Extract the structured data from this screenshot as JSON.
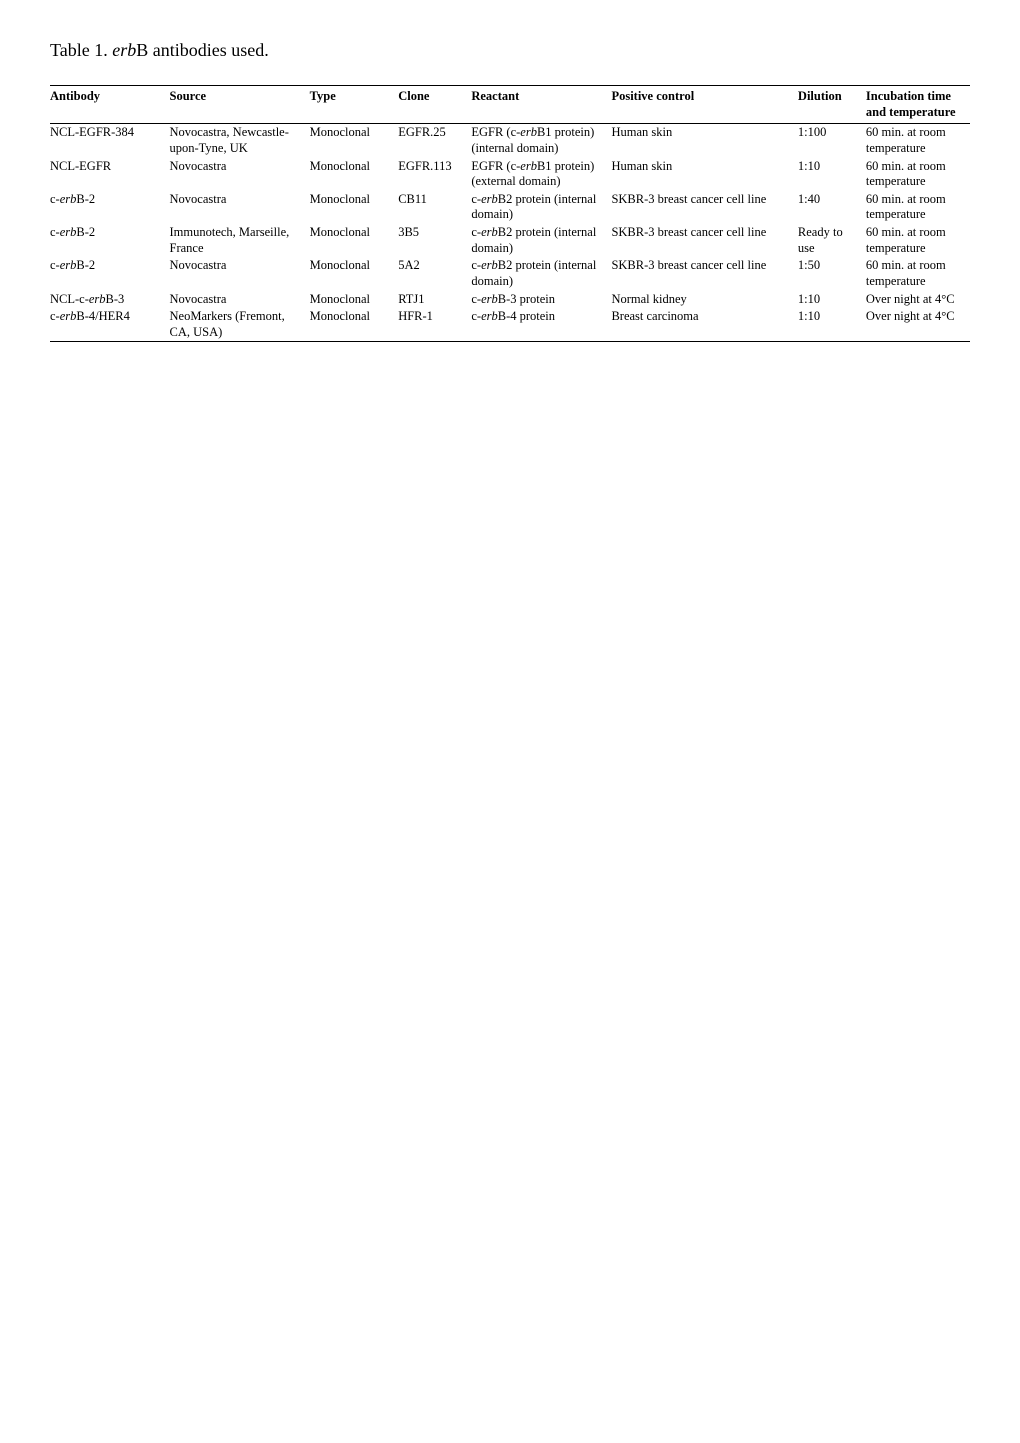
{
  "title_parts": [
    "Table 1. ",
    "erb",
    "B antibodies used."
  ],
  "columns": [
    "Antibody",
    "Source",
    "Type",
    "Clone",
    "Reactant",
    "Positive control",
    "Dilution",
    "Incubation time and temperature"
  ],
  "rows": [
    {
      "antibody": "NCL-EGFR-384",
      "source": "Novocastra, Newcastle-upon-Tyne, UK",
      "type": "Monoclonal",
      "clone": "EGFR.25",
      "reactant_parts": [
        "EGFR (c-",
        "erb",
        "B1 protein) (internal domain)"
      ],
      "control": "Human skin",
      "dilution": "1:100",
      "incubation": "60 min. at room temperature"
    },
    {
      "antibody": "NCL-EGFR",
      "source": "Novocastra",
      "type": "Monoclonal",
      "clone": "EGFR.113",
      "reactant_parts": [
        "EGFR (c-",
        "erb",
        "B1 protein) (external domain)"
      ],
      "control": "Human skin",
      "dilution": "1:10",
      "incubation": "60 min. at room temperature"
    },
    {
      "antibody_parts": [
        "c-",
        "erb",
        "B-2"
      ],
      "source": "Novocastra",
      "type": "Monoclonal",
      "clone": "CB11",
      "reactant_parts": [
        "c-",
        "erb",
        "B2 protein (internal domain)"
      ],
      "control": "SKBR-3 breast cancer cell line",
      "dilution": "1:40",
      "incubation": "60 min. at room temperature"
    },
    {
      "antibody_parts": [
        "c-",
        "erb",
        "B-2"
      ],
      "source": "Immunotech, Marseille, France",
      "type": "Monoclonal",
      "clone": "3B5",
      "reactant_parts": [
        "c-",
        "erb",
        "B2 protein (internal domain)"
      ],
      "control": "SKBR-3 breast cancer cell line",
      "dilution": "Ready to use",
      "incubation": "60 min. at room temperature"
    },
    {
      "antibody_parts": [
        "c-",
        "erb",
        "B-2"
      ],
      "source": "Novocastra",
      "type": "Monoclonal",
      "clone": "5A2",
      "reactant_parts": [
        "c-",
        "erb",
        "B2 protein (internal domain)"
      ],
      "control": "SKBR-3 breast cancer cell line",
      "dilution": "1:50",
      "incubation": "60 min. at room temperature"
    },
    {
      "antibody_parts": [
        "NCL-c-",
        "erb",
        "B-3"
      ],
      "source": "Novocastra",
      "type": "Monoclonal",
      "clone": "RTJ1",
      "reactant_parts": [
        "c-",
        "erb",
        "B-3 protein"
      ],
      "control": "Normal kidney",
      "dilution": "1:10",
      "incubation": "Over night at 4°C"
    },
    {
      "antibody_parts": [
        "c-",
        "erb",
        "B-4/HER4"
      ],
      "source": "NeoMarkers (Fremont, CA, USA)",
      "type": "Monoclonal",
      "clone": "HFR-1",
      "reactant_parts": [
        "c-",
        "erb",
        "B-4 protein"
      ],
      "control": "Breast carcinoma",
      "dilution": "1:10",
      "incubation": "Over night at 4°C"
    }
  ]
}
